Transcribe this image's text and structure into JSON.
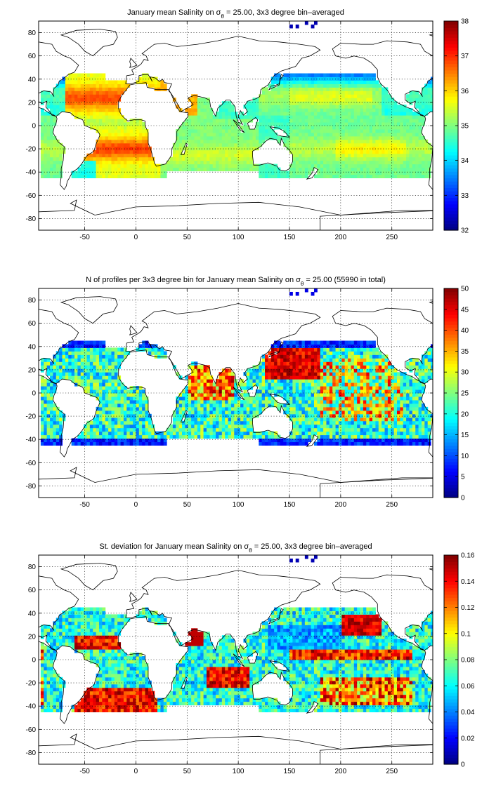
{
  "chart_data": [
    {
      "type": "heatmap",
      "title_pre": "January mean Salinity on σ",
      "title_sub": "θ",
      "title_post": " = 25.00, 3x3 degree bin–averaged",
      "xlim": [
        -95,
        290
      ],
      "ylim": [
        -90,
        90
      ],
      "xticks": [
        -50,
        0,
        50,
        100,
        150,
        200,
        250
      ],
      "yticks": [
        -80,
        -60,
        -40,
        -20,
        0,
        20,
        40,
        60,
        80
      ],
      "colorbar": {
        "clim": [
          32,
          38
        ],
        "ticks": [
          "32",
          "33",
          "34",
          "35",
          "36",
          "37",
          "38"
        ]
      },
      "grid": true,
      "field": "salinity"
    },
    {
      "type": "heatmap",
      "title_pre": "N of profiles per 3x3 degree bin for January mean Salinity on σ",
      "title_sub": "θ",
      "title_post": " = 25.00 (55990 in total)",
      "xlim": [
        -95,
        290
      ],
      "ylim": [
        -90,
        90
      ],
      "xticks": [
        -50,
        0,
        50,
        100,
        150,
        200,
        250
      ],
      "yticks": [
        -80,
        -60,
        -40,
        -20,
        0,
        20,
        40,
        60,
        80
      ],
      "colorbar": {
        "clim": [
          0,
          50
        ],
        "ticks": [
          "0",
          "5",
          "10",
          "15",
          "20",
          "25",
          "30",
          "35",
          "40",
          "45",
          "50"
        ]
      },
      "grid": true,
      "field": "count"
    },
    {
      "type": "heatmap",
      "title_pre": "St. deviation for January mean Salinity on σ",
      "title_sub": "θ",
      "title_post": " = 25.00, 3x3 degree bin–averaged",
      "xlim": [
        -95,
        290
      ],
      "ylim": [
        -90,
        90
      ],
      "xticks": [
        -50,
        0,
        50,
        100,
        150,
        200,
        250
      ],
      "yticks": [
        -80,
        -60,
        -40,
        -20,
        0,
        20,
        40,
        60,
        80
      ],
      "colorbar": {
        "clim": [
          0,
          0.16
        ],
        "ticks": [
          "0",
          "0.02",
          "0.04",
          "0.06",
          "0.08",
          "0.1",
          "0.12",
          "0.14",
          "0.16"
        ]
      },
      "grid": true,
      "field": "stdev"
    }
  ]
}
